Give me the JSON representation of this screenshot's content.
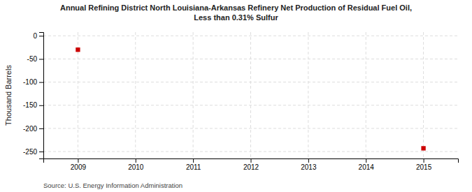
{
  "chart_data": {
    "type": "scatter",
    "title": "Annual Refining District North Louisiana-Arkansas Refinery Net Production of Residual Fuel Oil,\nLess than 0.31% Sulfur",
    "ylabel": "Thousand Barrels",
    "source": "Source: U.S. Energy Information Administration",
    "x": [
      2009,
      2015
    ],
    "values": [
      -30,
      -243
    ],
    "color": "#cc0000",
    "marker": "square",
    "xlim": [
      2008.4,
      2015.6
    ],
    "ylim": [
      -265,
      8
    ],
    "xticks": [
      2009,
      2010,
      2011,
      2012,
      2013,
      2014,
      2015
    ],
    "yticks": [
      0,
      -50,
      -100,
      -150,
      -200,
      -250
    ],
    "grid": true
  }
}
